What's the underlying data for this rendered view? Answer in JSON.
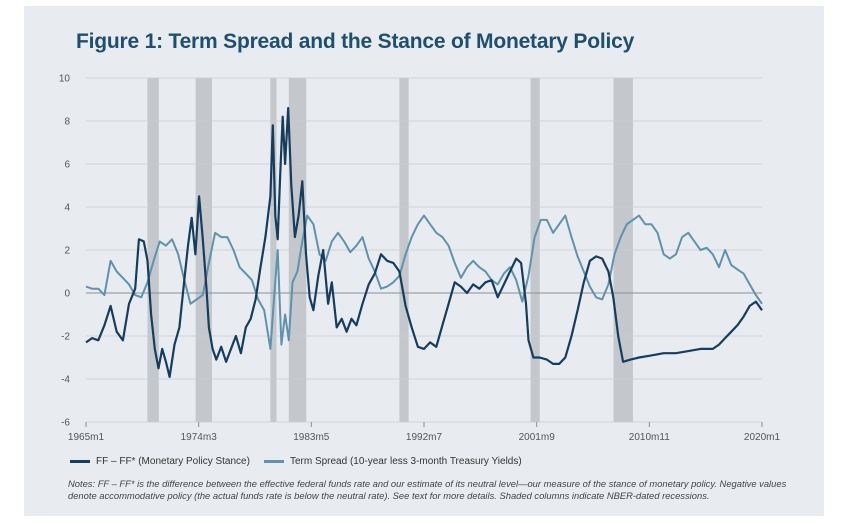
{
  "title": "Figure 1: Term Spread and the Stance of Monetary Policy",
  "notes": "Notes: FF – FF* is the difference between the effective federal funds rate and our estimate of its neutral level—our measure of the stance of monetary policy. Negative values denote accommodative policy (the actual funds rate is below the neutral rate). See text for more details. Shaded columns indicate NBER-dated recessions.",
  "colors": {
    "ff": "#163d5e",
    "spread": "#5f93ad",
    "recession": "#c4c8cc",
    "grid": "#c9cdd1",
    "zero": "#8a8f94",
    "axis": "#555555"
  },
  "chart_data": {
    "type": "line",
    "title": "Figure 1: Term Spread and the Stance of Monetary Policy",
    "xlim": [
      1965.0,
      2020.0
    ],
    "ylim": [
      -6,
      10
    ],
    "yticks": [
      -6,
      -4,
      -2,
      0,
      2,
      4,
      6,
      8,
      10
    ],
    "xticks": [
      {
        "x": 1965.0,
        "label": "1965m1"
      },
      {
        "x": 1974.17,
        "label": "1974m3"
      },
      {
        "x": 1983.33,
        "label": "1983m5"
      },
      {
        "x": 1992.5,
        "label": "1992m7"
      },
      {
        "x": 2001.67,
        "label": "2001m9"
      },
      {
        "x": 2010.83,
        "label": "2010m11"
      },
      {
        "x": 2020.0,
        "label": "2020m1"
      }
    ],
    "grid": true,
    "legend_position": "bottom",
    "recessions": [
      [
        1970.0,
        1970.92
      ],
      [
        1973.92,
        1975.25
      ],
      [
        1980.0,
        1980.5
      ],
      [
        1981.5,
        1982.92
      ],
      [
        1990.5,
        1991.25
      ],
      [
        2001.17,
        2001.92
      ],
      [
        2007.92,
        2009.5
      ]
    ],
    "series": [
      {
        "name": "FF – FF* (Monetary Policy Stance)",
        "points": [
          [
            1965.0,
            -2.3
          ],
          [
            1965.5,
            -2.1
          ],
          [
            1966.0,
            -2.2
          ],
          [
            1966.5,
            -1.5
          ],
          [
            1967.0,
            -0.6
          ],
          [
            1967.5,
            -1.8
          ],
          [
            1968.0,
            -2.2
          ],
          [
            1968.5,
            -0.5
          ],
          [
            1969.0,
            0.2
          ],
          [
            1969.3,
            2.5
          ],
          [
            1969.7,
            2.4
          ],
          [
            1970.0,
            1.5
          ],
          [
            1970.3,
            -1.0
          ],
          [
            1970.6,
            -2.6
          ],
          [
            1970.9,
            -3.5
          ],
          [
            1971.2,
            -2.6
          ],
          [
            1971.5,
            -3.2
          ],
          [
            1971.8,
            -3.9
          ],
          [
            1972.2,
            -2.4
          ],
          [
            1972.6,
            -1.6
          ],
          [
            1973.0,
            0.6
          ],
          [
            1973.3,
            2.2
          ],
          [
            1973.6,
            3.5
          ],
          [
            1973.9,
            1.8
          ],
          [
            1974.2,
            4.5
          ],
          [
            1974.5,
            2.5
          ],
          [
            1974.8,
            0.2
          ],
          [
            1975.0,
            -1.6
          ],
          [
            1975.3,
            -2.6
          ],
          [
            1975.6,
            -3.1
          ],
          [
            1976.0,
            -2.5
          ],
          [
            1976.4,
            -3.2
          ],
          [
            1976.8,
            -2.6
          ],
          [
            1977.2,
            -2.0
          ],
          [
            1977.6,
            -2.8
          ],
          [
            1978.0,
            -1.6
          ],
          [
            1978.4,
            -1.2
          ],
          [
            1978.8,
            -0.3
          ],
          [
            1979.2,
            1.2
          ],
          [
            1979.6,
            2.6
          ],
          [
            1980.0,
            4.5
          ],
          [
            1980.2,
            7.8
          ],
          [
            1980.4,
            3.6
          ],
          [
            1980.6,
            2.5
          ],
          [
            1980.8,
            5.5
          ],
          [
            1981.0,
            8.2
          ],
          [
            1981.2,
            6.0
          ],
          [
            1981.45,
            8.6
          ],
          [
            1981.7,
            5.0
          ],
          [
            1982.0,
            2.6
          ],
          [
            1982.3,
            3.6
          ],
          [
            1982.6,
            5.2
          ],
          [
            1982.9,
            1.8
          ],
          [
            1983.2,
            -0.2
          ],
          [
            1983.5,
            -0.8
          ],
          [
            1983.9,
            0.8
          ],
          [
            1984.3,
            2.0
          ],
          [
            1984.7,
            -0.5
          ],
          [
            1985.0,
            0.5
          ],
          [
            1985.4,
            -1.6
          ],
          [
            1985.8,
            -1.2
          ],
          [
            1986.2,
            -1.8
          ],
          [
            1986.6,
            -1.2
          ],
          [
            1987.0,
            -1.5
          ],
          [
            1987.5,
            -0.5
          ],
          [
            1988.0,
            0.4
          ],
          [
            1988.5,
            0.9
          ],
          [
            1989.0,
            1.8
          ],
          [
            1989.5,
            1.5
          ],
          [
            1990.0,
            1.4
          ],
          [
            1990.5,
            1.0
          ],
          [
            1991.0,
            -0.6
          ],
          [
            1991.5,
            -1.6
          ],
          [
            1992.0,
            -2.5
          ],
          [
            1992.5,
            -2.6
          ],
          [
            1993.0,
            -2.3
          ],
          [
            1993.5,
            -2.5
          ],
          [
            1994.0,
            -1.5
          ],
          [
            1994.5,
            -0.5
          ],
          [
            1995.0,
            0.5
          ],
          [
            1995.5,
            0.3
          ],
          [
            1996.0,
            0.0
          ],
          [
            1996.5,
            0.4
          ],
          [
            1997.0,
            0.2
          ],
          [
            1997.5,
            0.5
          ],
          [
            1998.0,
            0.6
          ],
          [
            1998.5,
            -0.2
          ],
          [
            1999.0,
            0.4
          ],
          [
            1999.5,
            1.0
          ],
          [
            2000.0,
            1.6
          ],
          [
            2000.4,
            1.4
          ],
          [
            2000.8,
            -0.5
          ],
          [
            2001.0,
            -2.2
          ],
          [
            2001.4,
            -3.0
          ],
          [
            2001.9,
            -3.0
          ],
          [
            2002.5,
            -3.1
          ],
          [
            2003.0,
            -3.3
          ],
          [
            2003.5,
            -3.3
          ],
          [
            2004.0,
            -3.0
          ],
          [
            2004.5,
            -2.0
          ],
          [
            2005.0,
            -0.8
          ],
          [
            2005.5,
            0.5
          ],
          [
            2006.0,
            1.5
          ],
          [
            2006.5,
            1.7
          ],
          [
            2007.0,
            1.6
          ],
          [
            2007.5,
            1.0
          ],
          [
            2007.9,
            -0.2
          ],
          [
            2008.3,
            -2.0
          ],
          [
            2008.7,
            -3.2
          ],
          [
            2009.3,
            -3.1
          ],
          [
            2010.0,
            -3.0
          ],
          [
            2011.0,
            -2.9
          ],
          [
            2012.0,
            -2.8
          ],
          [
            2013.0,
            -2.8
          ],
          [
            2014.0,
            -2.7
          ],
          [
            2015.0,
            -2.6
          ],
          [
            2016.0,
            -2.6
          ],
          [
            2016.5,
            -2.4
          ],
          [
            2017.0,
            -2.1
          ],
          [
            2017.5,
            -1.8
          ],
          [
            2018.0,
            -1.5
          ],
          [
            2018.5,
            -1.1
          ],
          [
            2019.0,
            -0.6
          ],
          [
            2019.5,
            -0.4
          ],
          [
            2020.0,
            -0.8
          ]
        ]
      },
      {
        "name": "Term Spread (10-year less 3-month Treasury Yields)",
        "points": [
          [
            1965.0,
            0.3
          ],
          [
            1965.5,
            0.2
          ],
          [
            1966.0,
            0.2
          ],
          [
            1966.5,
            -0.1
          ],
          [
            1967.0,
            1.5
          ],
          [
            1967.5,
            1.0
          ],
          [
            1968.0,
            0.7
          ],
          [
            1968.5,
            0.4
          ],
          [
            1969.0,
            -0.1
          ],
          [
            1969.5,
            -0.2
          ],
          [
            1970.0,
            0.5
          ],
          [
            1970.5,
            1.5
          ],
          [
            1971.0,
            2.4
          ],
          [
            1971.5,
            2.2
          ],
          [
            1972.0,
            2.5
          ],
          [
            1972.5,
            1.8
          ],
          [
            1973.0,
            0.6
          ],
          [
            1973.5,
            -0.5
          ],
          [
            1974.0,
            -0.3
          ],
          [
            1974.5,
            -0.1
          ],
          [
            1975.0,
            1.4
          ],
          [
            1975.5,
            2.8
          ],
          [
            1976.0,
            2.6
          ],
          [
            1976.5,
            2.6
          ],
          [
            1977.0,
            2.0
          ],
          [
            1977.5,
            1.2
          ],
          [
            1978.0,
            0.9
          ],
          [
            1978.5,
            0.6
          ],
          [
            1979.0,
            -0.3
          ],
          [
            1979.5,
            -0.8
          ],
          [
            1980.0,
            -2.6
          ],
          [
            1980.3,
            -0.2
          ],
          [
            1980.6,
            2.0
          ],
          [
            1980.9,
            -2.4
          ],
          [
            1981.2,
            -1.0
          ],
          [
            1981.5,
            -2.2
          ],
          [
            1981.8,
            0.5
          ],
          [
            1982.2,
            1.0
          ],
          [
            1982.6,
            2.4
          ],
          [
            1983.0,
            3.6
          ],
          [
            1983.5,
            3.2
          ],
          [
            1984.0,
            1.8
          ],
          [
            1984.5,
            1.5
          ],
          [
            1985.0,
            2.4
          ],
          [
            1985.5,
            2.8
          ],
          [
            1986.0,
            2.4
          ],
          [
            1986.5,
            1.9
          ],
          [
            1987.0,
            2.2
          ],
          [
            1987.5,
            2.6
          ],
          [
            1988.0,
            1.6
          ],
          [
            1988.5,
            1.0
          ],
          [
            1989.0,
            0.2
          ],
          [
            1989.5,
            0.3
          ],
          [
            1990.0,
            0.5
          ],
          [
            1990.5,
            0.8
          ],
          [
            1991.0,
            1.8
          ],
          [
            1991.5,
            2.6
          ],
          [
            1992.0,
            3.2
          ],
          [
            1992.5,
            3.6
          ],
          [
            1993.0,
            3.2
          ],
          [
            1993.5,
            2.8
          ],
          [
            1994.0,
            2.6
          ],
          [
            1994.5,
            2.2
          ],
          [
            1995.0,
            1.4
          ],
          [
            1995.5,
            0.7
          ],
          [
            1996.0,
            1.2
          ],
          [
            1996.5,
            1.5
          ],
          [
            1997.0,
            1.2
          ],
          [
            1997.5,
            1.0
          ],
          [
            1998.0,
            0.6
          ],
          [
            1998.5,
            0.4
          ],
          [
            1999.0,
            0.9
          ],
          [
            1999.5,
            1.2
          ],
          [
            2000.0,
            0.6
          ],
          [
            2000.5,
            -0.4
          ],
          [
            2001.0,
            0.8
          ],
          [
            2001.5,
            2.6
          ],
          [
            2002.0,
            3.4
          ],
          [
            2002.5,
            3.4
          ],
          [
            2003.0,
            2.8
          ],
          [
            2003.5,
            3.2
          ],
          [
            2004.0,
            3.6
          ],
          [
            2004.5,
            2.6
          ],
          [
            2005.0,
            1.7
          ],
          [
            2005.5,
            1.0
          ],
          [
            2006.0,
            0.3
          ],
          [
            2006.5,
            -0.2
          ],
          [
            2007.0,
            -0.3
          ],
          [
            2007.5,
            0.4
          ],
          [
            2008.0,
            1.8
          ],
          [
            2008.5,
            2.6
          ],
          [
            2009.0,
            3.2
          ],
          [
            2009.5,
            3.4
          ],
          [
            2010.0,
            3.6
          ],
          [
            2010.5,
            3.2
          ],
          [
            2011.0,
            3.2
          ],
          [
            2011.5,
            2.8
          ],
          [
            2012.0,
            1.8
          ],
          [
            2012.5,
            1.6
          ],
          [
            2013.0,
            1.8
          ],
          [
            2013.5,
            2.6
          ],
          [
            2014.0,
            2.8
          ],
          [
            2014.5,
            2.4
          ],
          [
            2015.0,
            2.0
          ],
          [
            2015.5,
            2.1
          ],
          [
            2016.0,
            1.8
          ],
          [
            2016.5,
            1.2
          ],
          [
            2017.0,
            2.0
          ],
          [
            2017.5,
            1.3
          ],
          [
            2018.0,
            1.1
          ],
          [
            2018.5,
            0.9
          ],
          [
            2019.0,
            0.4
          ],
          [
            2019.5,
            -0.1
          ],
          [
            2020.0,
            -0.5
          ]
        ]
      }
    ]
  }
}
